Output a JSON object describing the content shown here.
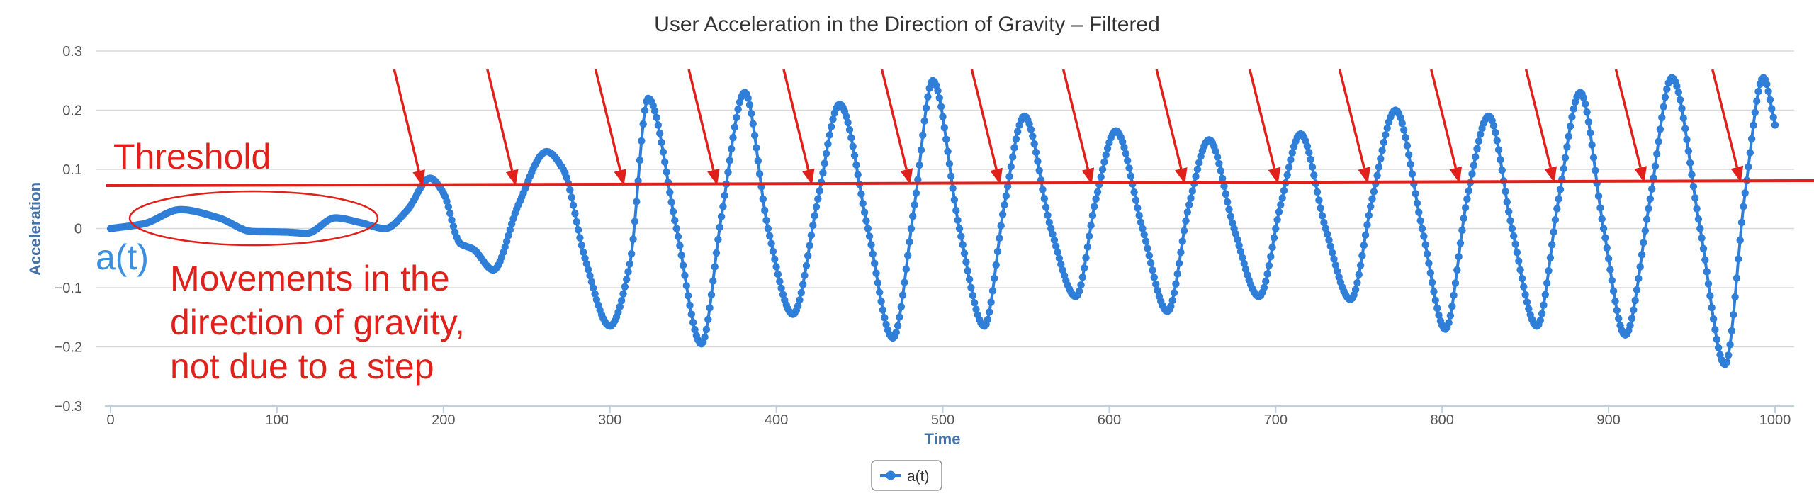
{
  "chart_data": {
    "type": "line",
    "title": "User Acceleration in the Direction of Gravity – Filtered",
    "xlabel": "Time",
    "ylabel": "Acceleration",
    "xlim": [
      0,
      1000
    ],
    "ylim": [
      -0.3,
      0.3
    ],
    "x_ticks": [
      0,
      100,
      200,
      300,
      400,
      500,
      600,
      700,
      800,
      900,
      1000
    ],
    "y_ticks": [
      {
        "value": 0.3,
        "label": "0.3"
      },
      {
        "value": 0.2,
        "label": "0.2"
      },
      {
        "value": 0.1,
        "label": "0.1"
      },
      {
        "value": 0,
        "label": "0"
      },
      {
        "value": -0.1,
        "label": "−0.1"
      },
      {
        "value": -0.2,
        "label": "−0.2"
      },
      {
        "value": -0.3,
        "label": "−0.3"
      }
    ],
    "grid": true,
    "legend_position": "bottom-center",
    "series": [
      {
        "name": "a(t)",
        "color": "#2f7ed8",
        "points": [
          [
            0,
            0.0
          ],
          [
            20,
            0.008
          ],
          [
            42,
            0.032
          ],
          [
            65,
            0.018
          ],
          [
            85,
            -0.005
          ],
          [
            105,
            -0.006
          ],
          [
            118,
            -0.008
          ],
          [
            135,
            0.018
          ],
          [
            150,
            0.01
          ],
          [
            165,
            0.0
          ],
          [
            178,
            0.03
          ],
          [
            192,
            0.085
          ],
          [
            200,
            0.06
          ],
          [
            210,
            -0.025
          ],
          [
            218,
            -0.035
          ],
          [
            230,
            -0.07
          ],
          [
            245,
            0.04
          ],
          [
            262,
            0.13
          ],
          [
            272,
            0.1
          ],
          [
            285,
            -0.05
          ],
          [
            300,
            -0.165
          ],
          [
            312,
            -0.06
          ],
          [
            323,
            0.22
          ],
          [
            340,
            0.0
          ],
          [
            355,
            -0.195
          ],
          [
            367,
            0.02
          ],
          [
            381,
            0.23
          ],
          [
            395,
            0.0
          ],
          [
            410,
            -0.145
          ],
          [
            425,
            0.05
          ],
          [
            438,
            0.21
          ],
          [
            455,
            0.0
          ],
          [
            470,
            -0.185
          ],
          [
            483,
            0.04
          ],
          [
            494,
            0.25
          ],
          [
            510,
            0.0
          ],
          [
            525,
            -0.165
          ],
          [
            537,
            0.04
          ],
          [
            549,
            0.19
          ],
          [
            565,
            0.0
          ],
          [
            580,
            -0.115
          ],
          [
            592,
            0.05
          ],
          [
            604,
            0.165
          ],
          [
            620,
            0.0
          ],
          [
            635,
            -0.14
          ],
          [
            648,
            0.04
          ],
          [
            660,
            0.15
          ],
          [
            675,
            0.0
          ],
          [
            690,
            -0.115
          ],
          [
            703,
            0.04
          ],
          [
            715,
            0.16
          ],
          [
            730,
            0.0
          ],
          [
            745,
            -0.12
          ],
          [
            758,
            0.05
          ],
          [
            772,
            0.2
          ],
          [
            788,
            0.0
          ],
          [
            802,
            -0.17
          ],
          [
            815,
            0.05
          ],
          [
            828,
            0.19
          ],
          [
            842,
            0.0
          ],
          [
            857,
            -0.165
          ],
          [
            870,
            0.05
          ],
          [
            883,
            0.23
          ],
          [
            897,
            0.0
          ],
          [
            910,
            -0.18
          ],
          [
            925,
            0.05
          ],
          [
            938,
            0.255
          ],
          [
            955,
            0.0
          ],
          [
            970,
            -0.23
          ],
          [
            982,
            0.06
          ],
          [
            993,
            0.255
          ],
          [
            1000,
            0.175
          ]
        ]
      }
    ],
    "annotations": {
      "threshold": {
        "value": 0.077,
        "label": "Threshold",
        "color": "#e0201a"
      },
      "ellipse_note": "Movements in the\ndirection of gravity,\nnot due to a step",
      "series_label": "a(t)",
      "step_arrows_x": [
        190,
        246,
        311,
        367,
        424,
        483,
        537,
        592,
        648,
        704,
        758,
        813,
        870,
        924,
        982
      ]
    }
  }
}
